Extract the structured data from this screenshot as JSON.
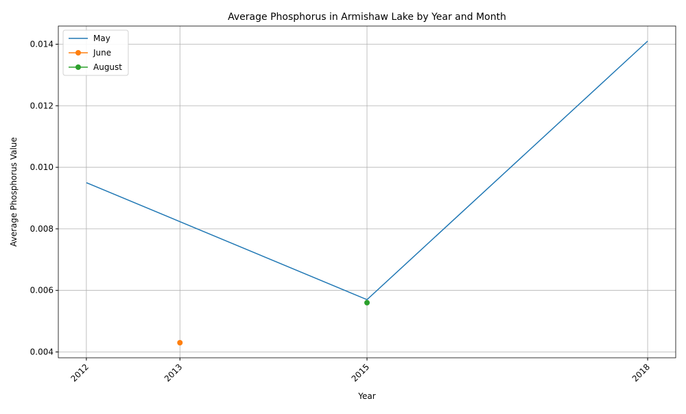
{
  "chart_data": {
    "type": "line",
    "title": "Average Phosphorus in Armishaw Lake by Year and Month",
    "x_label": "Year",
    "y_label": "Average Phosphorus Value",
    "series": [
      {
        "name": "May",
        "color": "#1f77b4",
        "marker": false,
        "x": [
          2012,
          2015,
          2018
        ],
        "values": [
          0.0095,
          0.0057,
          0.0141
        ]
      },
      {
        "name": "June",
        "color": "#ff7f0e",
        "marker": true,
        "x": [
          2013
        ],
        "values": [
          0.0043
        ]
      },
      {
        "name": "August",
        "color": "#2ca02c",
        "marker": true,
        "x": [
          2015
        ],
        "values": [
          0.0056
        ]
      }
    ],
    "xlim": [
      2011.7,
      2018.3
    ],
    "xticks": [
      2012,
      2013,
      2015,
      2018
    ],
    "ylim": [
      0.00381,
      0.01459
    ],
    "yticks": [
      0.004,
      0.006,
      0.008,
      {
        "value": 0.01,
        "label": "0.010"
      },
      0.012,
      0.014
    ],
    "grid": true,
    "legend": "upper-left"
  }
}
